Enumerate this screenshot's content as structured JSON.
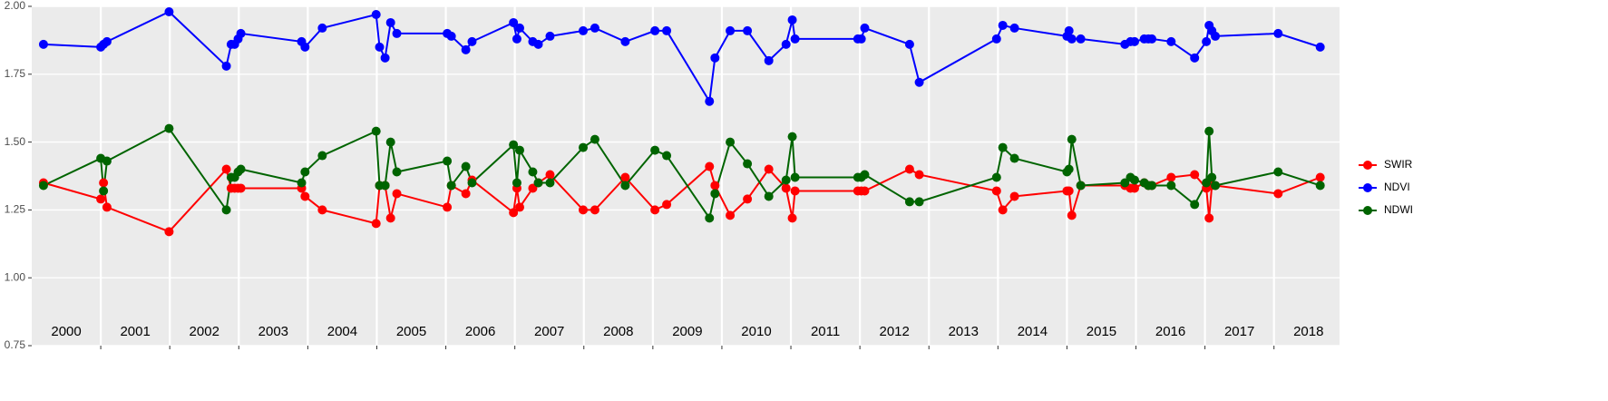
{
  "chart_data": {
    "type": "line",
    "x": [
      2000.17,
      2001.0,
      2001.04,
      2001.09,
      2001.99,
      2002.82,
      2002.89,
      2002.94,
      2002.99,
      2003.03,
      2003.91,
      2003.96,
      2004.21,
      2004.99,
      2005.04,
      2005.12,
      2005.2,
      2005.29,
      2006.02,
      2006.08,
      2006.29,
      2006.38,
      2006.98,
      2007.03,
      2007.07,
      2007.26,
      2007.34,
      2007.51,
      2007.99,
      2008.16,
      2008.6,
      2009.03,
      2009.2,
      2009.82,
      2009.9,
      2010.12,
      2010.37,
      2010.68,
      2010.93,
      2011.02,
      2011.06,
      2011.97,
      2012.02,
      2012.07,
      2012.72,
      2012.86,
      2013.98,
      2014.07,
      2014.24,
      2015.0,
      2015.03,
      2015.07,
      2015.2,
      2015.84,
      2015.92,
      2015.98,
      2016.12,
      2016.18,
      2016.23,
      2016.51,
      2016.85,
      2017.02,
      2017.06,
      2017.1,
      2017.15,
      2018.06,
      2018.67
    ],
    "series": [
      {
        "name": "SWIR",
        "color": "#ff0000",
        "values": [
          1.35,
          1.29,
          1.35,
          1.26,
          1.17,
          1.4,
          1.33,
          1.33,
          1.33,
          1.33,
          1.33,
          1.3,
          1.25,
          1.2,
          1.34,
          1.34,
          1.22,
          1.31,
          1.26,
          1.34,
          1.31,
          1.36,
          1.24,
          1.33,
          1.26,
          1.33,
          1.35,
          1.38,
          1.25,
          1.25,
          1.37,
          1.25,
          1.27,
          1.41,
          1.34,
          1.23,
          1.29,
          1.4,
          1.33,
          1.22,
          1.32,
          1.32,
          1.32,
          1.32,
          1.4,
          1.38,
          1.32,
          1.25,
          1.3,
          1.32,
          1.32,
          1.23,
          1.34,
          1.34,
          1.33,
          1.33,
          1.35,
          1.34,
          1.34,
          1.37,
          1.38,
          1.33,
          1.22,
          1.34,
          1.34,
          1.31,
          1.37
        ]
      },
      {
        "name": "NDVI",
        "color": "#0000ff",
        "values": [
          1.86,
          1.85,
          1.86,
          1.87,
          1.98,
          1.78,
          1.86,
          1.86,
          1.88,
          1.9,
          1.87,
          1.85,
          1.92,
          1.97,
          1.85,
          1.81,
          1.94,
          1.9,
          1.9,
          1.89,
          1.84,
          1.87,
          1.94,
          1.88,
          1.92,
          1.87,
          1.86,
          1.89,
          1.91,
          1.92,
          1.87,
          1.91,
          1.91,
          1.65,
          1.81,
          1.91,
          1.91,
          1.8,
          1.86,
          1.95,
          1.88,
          1.88,
          1.88,
          1.92,
          1.86,
          1.72,
          1.88,
          1.93,
          1.92,
          1.89,
          1.91,
          1.88,
          1.88,
          1.86,
          1.87,
          1.87,
          1.88,
          1.88,
          1.88,
          1.87,
          1.81,
          1.87,
          1.93,
          1.91,
          1.89,
          1.9,
          1.85
        ]
      },
      {
        "name": "NDWI",
        "color": "#006400",
        "values": [
          1.34,
          1.44,
          1.32,
          1.43,
          1.55,
          1.25,
          1.37,
          1.37,
          1.39,
          1.4,
          1.35,
          1.39,
          1.45,
          1.54,
          1.34,
          1.34,
          1.5,
          1.39,
          1.43,
          1.34,
          1.41,
          1.35,
          1.49,
          1.35,
          1.47,
          1.39,
          1.35,
          1.35,
          1.48,
          1.51,
          1.34,
          1.47,
          1.45,
          1.22,
          1.31,
          1.5,
          1.42,
          1.3,
          1.36,
          1.52,
          1.37,
          1.37,
          1.37,
          1.38,
          1.28,
          1.28,
          1.37,
          1.48,
          1.44,
          1.39,
          1.4,
          1.51,
          1.34,
          1.35,
          1.37,
          1.36,
          1.35,
          1.34,
          1.34,
          1.34,
          1.27,
          1.35,
          1.54,
          1.37,
          1.34,
          1.39,
          1.34
        ]
      }
    ],
    "xlim": [
      2000,
      2018.95
    ],
    "xticks": [
      2001,
      2002,
      2003,
      2004,
      2005,
      2006,
      2007,
      2008,
      2009,
      2010,
      2011,
      2012,
      2013,
      2014,
      2015,
      2016,
      2017,
      2018
    ],
    "year_labels": [
      2000,
      2001,
      2002,
      2003,
      2004,
      2005,
      2006,
      2007,
      2008,
      2009,
      2010,
      2011,
      2012,
      2013,
      2014,
      2015,
      2016,
      2017,
      2018
    ],
    "ylim": [
      0.75,
      2.0
    ],
    "yticks": [
      {
        "value": 0.75,
        "label": "0.75"
      },
      {
        "value": 1.0,
        "label": "1.00"
      },
      {
        "value": 1.25,
        "label": "1.25"
      },
      {
        "value": 1.5,
        "label": "1.50"
      },
      {
        "value": 1.75,
        "label": "1.75"
      },
      {
        "value": 2.0,
        "label": "2.00"
      }
    ],
    "grid": true,
    "legend": "right"
  }
}
